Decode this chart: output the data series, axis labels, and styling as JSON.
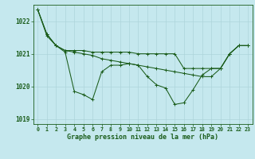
{
  "title": "Graphe pression niveau de la mer (hPa)",
  "background_color": "#c5e8ee",
  "grid_color": "#aed4da",
  "line_color": "#1a5c1a",
  "xlim": [
    -0.5,
    23.5
  ],
  "ylim": [
    1018.85,
    1022.5
  ],
  "yticks": [
    1019,
    1020,
    1021,
    1022
  ],
  "xticks": [
    0,
    1,
    2,
    3,
    4,
    5,
    6,
    7,
    8,
    9,
    10,
    11,
    12,
    13,
    14,
    15,
    16,
    17,
    18,
    19,
    20,
    21,
    22,
    23
  ],
  "series_jagged": {
    "x": [
      0,
      1,
      2,
      3,
      4,
      5,
      6,
      7,
      8,
      9,
      10,
      11,
      12,
      13,
      14,
      15,
      16,
      17,
      18,
      19,
      20,
      21,
      22,
      23
    ],
    "y": [
      1022.35,
      1021.6,
      1021.25,
      1021.05,
      1019.85,
      1019.75,
      1019.6,
      1020.45,
      1020.65,
      1020.65,
      1020.7,
      1020.65,
      1020.3,
      1020.05,
      1019.95,
      1019.45,
      1019.5,
      1019.9,
      1020.35,
      1020.55,
      1020.55,
      1021.0,
      1021.25,
      1021.25
    ]
  },
  "series_smooth1": {
    "x": [
      0,
      1,
      2,
      3,
      4,
      5,
      6,
      7,
      8,
      9,
      10,
      11,
      12,
      13,
      14,
      15,
      16,
      17,
      18,
      19,
      20,
      21,
      22,
      23
    ],
    "y": [
      1022.35,
      1021.55,
      1021.25,
      1021.1,
      1021.1,
      1021.1,
      1021.05,
      1021.05,
      1021.05,
      1021.05,
      1021.05,
      1021.0,
      1021.0,
      1021.0,
      1021.0,
      1021.0,
      1020.55,
      1020.55,
      1020.55,
      1020.55,
      1020.55,
      1021.0,
      1021.25,
      1021.25
    ]
  },
  "series_smooth2": {
    "x": [
      0,
      1,
      2,
      3,
      4,
      5,
      6,
      7,
      8,
      9,
      10,
      11,
      12,
      13,
      14,
      15,
      16,
      17,
      18,
      19,
      20,
      21,
      22,
      23
    ],
    "y": [
      1022.35,
      1021.6,
      1021.25,
      1021.1,
      1021.05,
      1021.0,
      1020.95,
      1020.85,
      1020.8,
      1020.75,
      1020.7,
      1020.65,
      1020.6,
      1020.55,
      1020.5,
      1020.45,
      1020.4,
      1020.35,
      1020.3,
      1020.3,
      1020.55,
      1021.0,
      1021.25,
      1021.25
    ]
  }
}
